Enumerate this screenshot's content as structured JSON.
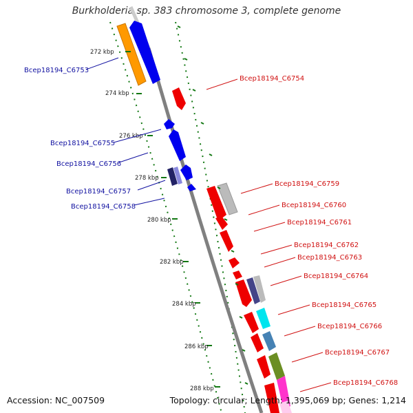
{
  "title": "Burkholderia sp. 383 chromosome 3, complete genome",
  "footer": {
    "accession": "Accession: NC_007509",
    "summary": "Topology: circular; Length: 1,395,069 bp; Genes: 1,214"
  },
  "colors": {
    "plus_strand": "#ee0000",
    "minus_strand": "#0000ee",
    "backbone": "#808080",
    "tick": "#117711",
    "label_left": "#1010a0",
    "label_right": "#d01010"
  },
  "ticks": [
    {
      "label": "272 kbp"
    },
    {
      "label": "274 kbp"
    },
    {
      "label": "276 kbp"
    },
    {
      "label": "278 kbp"
    },
    {
      "label": "280 kbp"
    },
    {
      "label": "282 kbp"
    },
    {
      "label": "284 kbp"
    },
    {
      "label": "286 kbp"
    },
    {
      "label": "288 kbp"
    }
  ],
  "genes_left": [
    {
      "label": "Bcep18194_C6753"
    },
    {
      "label": "Bcep18194_C6755"
    },
    {
      "label": "Bcep18194_C6756"
    },
    {
      "label": "Bcep18194_C6757"
    },
    {
      "label": "Bcep18194_C6758"
    }
  ],
  "genes_right": [
    {
      "label": "Bcep18194_C6754"
    },
    {
      "label": "Bcep18194_C6759"
    },
    {
      "label": "Bcep18194_C6760"
    },
    {
      "label": "Bcep18194_C6761"
    },
    {
      "label": "Bcep18194_C6762"
    },
    {
      "label": "Bcep18194_C6763"
    },
    {
      "label": "Bcep18194_C6764"
    },
    {
      "label": "Bcep18194_C6765"
    },
    {
      "label": "Bcep18194_C6766"
    },
    {
      "label": "Bcep18194_C6767"
    },
    {
      "label": "Bcep18194_C6768"
    }
  ]
}
